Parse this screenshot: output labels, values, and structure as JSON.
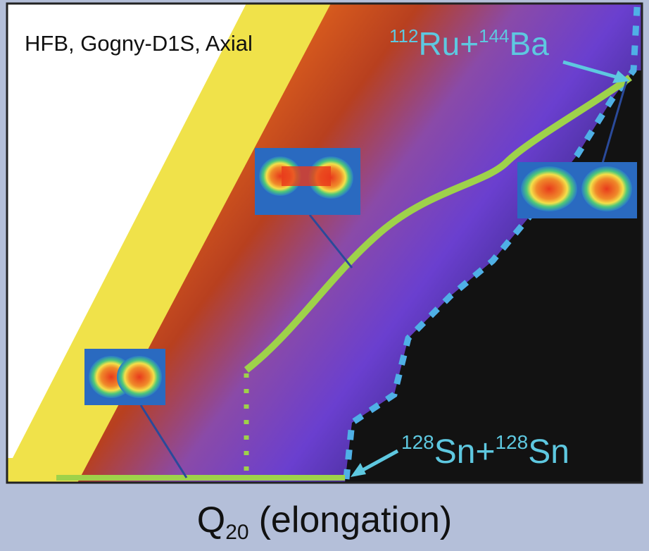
{
  "title": "HFB, Gogny-D1S, Axial",
  "labels": [
    {
      "mass1": "112",
      "nucleus1": "Ru",
      "plus": "+",
      "mass2": "144",
      "nucleus2": "Ba"
    },
    {
      "mass1": "128",
      "nucleus1": "Sn",
      "plus": "+",
      "mass2": "128",
      "nucleus2": "Sn"
    }
  ],
  "axis_label": {
    "symbol": "Q",
    "subscript": "20",
    "text": "(elongation)"
  }
}
